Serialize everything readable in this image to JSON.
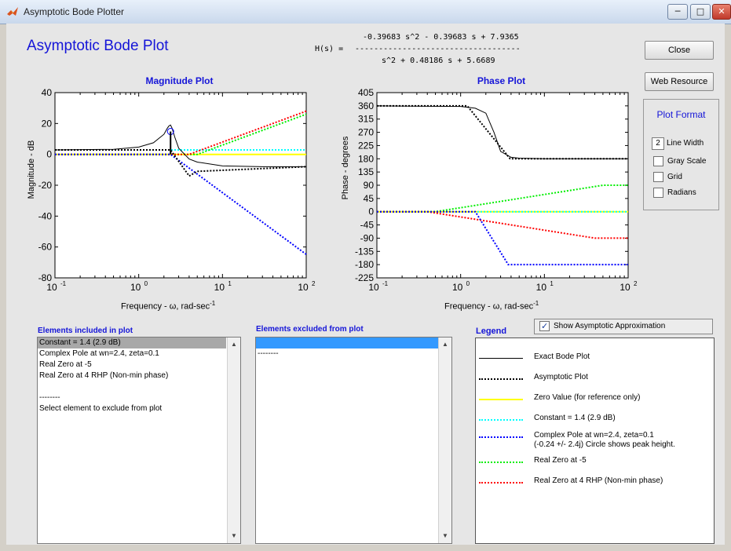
{
  "window": {
    "title": "Asymptotic Bode Plotter",
    "buttons": {
      "min": "─",
      "max": "□",
      "close": "✕"
    }
  },
  "heading": "Asymptotic Bode Plot",
  "transfer": {
    "label": "H(s) =",
    "numerator": "-0.39683 s^2 - 0.39683 s + 7.9365",
    "bar": "-----------------------------------",
    "denominator": "s^2 + 0.48186 s + 5.6689"
  },
  "buttons": {
    "close": "Close",
    "web": "Web Resource"
  },
  "plot_format": {
    "title": "Plot Format",
    "line_width_value": "2",
    "line_width_label": "Line Width",
    "gray_scale": "Gray Scale",
    "grid": "Grid",
    "radians": "Radians"
  },
  "magnitude_plot": {
    "title": "Magnitude Plot",
    "ylabel": "Magnitude - dB",
    "xlabel": "Frequency - ω, rad-sec",
    "xlabel_sup": "-1",
    "xticks": [
      {
        "base": "10",
        "exp": "-1"
      },
      {
        "base": "10",
        "exp": "0"
      },
      {
        "base": "10",
        "exp": "1"
      },
      {
        "base": "10",
        "exp": "2"
      }
    ],
    "yticks": [
      "40",
      "20",
      "0",
      "-20",
      "-40",
      "-60",
      "-80"
    ]
  },
  "phase_plot": {
    "title": "Phase Plot",
    "ylabel": "Phase - degrees",
    "xlabel": "Frequency - ω, rad-sec",
    "xlabel_sup": "-1",
    "xticks": [
      {
        "base": "10",
        "exp": "-1"
      },
      {
        "base": "10",
        "exp": "0"
      },
      {
        "base": "10",
        "exp": "1"
      },
      {
        "base": "10",
        "exp": "2"
      }
    ],
    "yticks": [
      "405",
      "360",
      "315",
      "270",
      "225",
      "180",
      "135",
      "90",
      "45",
      "0",
      "-45",
      "-90",
      "-135",
      "-180",
      "-225"
    ]
  },
  "included": {
    "label": "Elements included in plot",
    "items": [
      "Constant = 1.4 (2.9 dB)",
      "Complex Pole at wn=2.4, zeta=0.1",
      "Real Zero at -5",
      "Real Zero at 4 RHP (Non-min phase)",
      "",
      "--------",
      "Select element to exclude from plot"
    ]
  },
  "excluded": {
    "label": "Elements excluded from plot",
    "items": [
      "",
      "--------"
    ]
  },
  "legend": {
    "label": "Legend",
    "show_asymptotic": "Show Asymptotic Approximation",
    "entries": [
      {
        "text": "Exact Bode Plot",
        "text2": "",
        "color": "#000000",
        "style": "solid"
      },
      {
        "text": "Asymptotic Plot",
        "text2": "",
        "color": "#000000",
        "style": "dotted"
      },
      {
        "text": "Zero Value (for reference only)",
        "text2": "",
        "color": "#ffff00",
        "style": "solid"
      },
      {
        "text": "Constant = 1.4 (2.9 dB)",
        "text2": "",
        "color": "#00ffff",
        "style": "dotted"
      },
      {
        "text": "Complex Pole at wn=2.4, zeta=0.1",
        "text2": "(-0.24 +/- 2.4j)  Circle shows peak height.",
        "color": "#0000ff",
        "style": "dotted"
      },
      {
        "text": "Real Zero at -5",
        "text2": "",
        "color": "#00ee00",
        "style": "dotted"
      },
      {
        "text": "Real Zero at 4 RHP (Non-min phase)",
        "text2": "",
        "color": "#ff0000",
        "style": "dotted"
      }
    ]
  },
  "chart_data": [
    {
      "type": "line",
      "title": "Magnitude Plot",
      "xlabel": "Frequency - ω, rad-sec^-1",
      "ylabel": "Magnitude - dB",
      "xscale": "log",
      "xlim": [
        0.1,
        100
      ],
      "ylim": [
        -80,
        40
      ],
      "grid": false,
      "series": [
        {
          "name": "Exact Bode Plot",
          "x": [
            0.1,
            0.5,
            1,
            1.5,
            2,
            2.2,
            2.3,
            2.4,
            2.5,
            2.7,
            3,
            4,
            5,
            10,
            30,
            100
          ],
          "y": [
            2.9,
            3.3,
            4.7,
            7.5,
            13,
            17,
            18.5,
            19,
            17,
            11,
            4,
            -3,
            -5,
            -7.5,
            -8,
            -8
          ]
        },
        {
          "name": "Asymptotic Plot",
          "x": [
            0.1,
            2.4,
            4,
            5,
            100
          ],
          "y": [
            2.9,
            2.9,
            -14,
            -11,
            -8
          ]
        },
        {
          "name": "Zero Value (for reference only)",
          "x": [
            0.1,
            100
          ],
          "y": [
            0,
            0
          ]
        },
        {
          "name": "Constant = 1.4 (2.9 dB)",
          "x": [
            0.1,
            100
          ],
          "y": [
            2.9,
            2.9
          ]
        },
        {
          "name": "Complex Pole at wn=2.4, zeta=0.1",
          "x": [
            0.1,
            2.4,
            100
          ],
          "y": [
            0,
            0,
            -64.8
          ]
        },
        {
          "name": "Real Zero at -5",
          "x": [
            0.1,
            5,
            100
          ],
          "y": [
            0,
            0,
            26
          ]
        },
        {
          "name": "Real Zero at 4 RHP (Non-min phase)",
          "x": [
            0.1,
            4,
            100
          ],
          "y": [
            0,
            0,
            28
          ]
        }
      ],
      "peak_marker": {
        "x": 2.4,
        "y": 14.8
      }
    },
    {
      "type": "line",
      "title": "Phase Plot",
      "xlabel": "Frequency - ω, rad-sec^-1",
      "ylabel": "Phase - degrees",
      "xscale": "log",
      "xlim": [
        0.1,
        100
      ],
      "ylim": [
        -225,
        405
      ],
      "grid": false,
      "series": [
        {
          "name": "Exact Bode Plot",
          "x": [
            0.1,
            1,
            1.5,
            2,
            2.5,
            3,
            4,
            5,
            10,
            100
          ],
          "y": [
            360,
            358,
            352,
            335,
            270,
            205,
            185,
            182,
            180,
            180
          ]
        },
        {
          "name": "Asymptotic Plot",
          "x": [
            0.1,
            1.2,
            3.9,
            100
          ],
          "y": [
            360,
            360,
            180,
            180
          ]
        },
        {
          "name": "Zero Value (for reference only)",
          "x": [
            0.1,
            100
          ],
          "y": [
            0,
            0
          ]
        },
        {
          "name": "Constant = 1.4 (2.9 dB)",
          "x": [
            0.1,
            100
          ],
          "y": [
            0,
            0
          ]
        },
        {
          "name": "Complex Pole at wn=2.4, zeta=0.1",
          "x": [
            0.1,
            1.5,
            3.7,
            100
          ],
          "y": [
            0,
            0,
            -180,
            -180
          ]
        },
        {
          "name": "Real Zero at -5",
          "x": [
            0.1,
            0.5,
            50,
            100
          ],
          "y": [
            0,
            0,
            90,
            90
          ]
        },
        {
          "name": "Real Zero at 4 RHP (Non-min phase)",
          "x": [
            0.1,
            0.4,
            40,
            100
          ],
          "y": [
            0,
            0,
            -90,
            -90
          ]
        }
      ]
    }
  ]
}
